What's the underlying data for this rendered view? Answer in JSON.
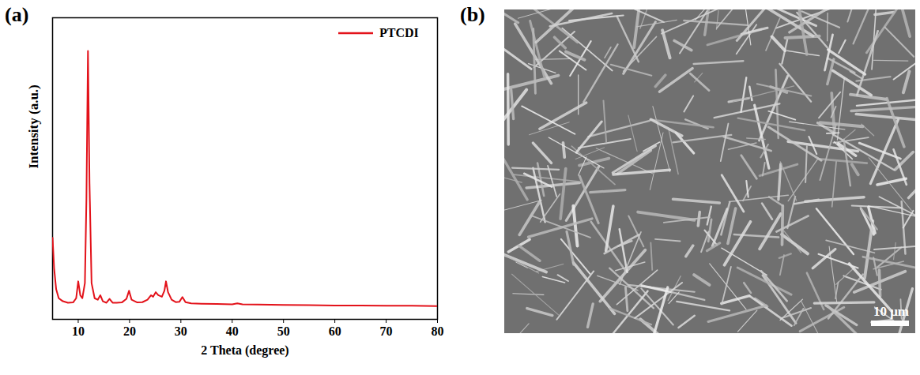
{
  "chart_data": {
    "type": "line",
    "panel_label": "(a)",
    "x_label": "2 Theta (degree)",
    "y_label": "Intensity (a.u.)",
    "x": [
      5,
      5.3,
      5.7,
      6.2,
      7,
      8,
      9,
      9.6,
      10,
      10.4,
      10.8,
      11.3,
      11.6,
      11.9,
      12.2,
      12.6,
      13.2,
      13.8,
      14.3,
      14.8,
      15.5,
      16.1,
      16.7,
      17.5,
      18.5,
      19.4,
      19.9,
      20.4,
      21.5,
      22.5,
      23.5,
      24.2,
      24.6,
      25.1,
      25.6,
      26.3,
      26.8,
      27.1,
      27.5,
      28.2,
      29,
      29.7,
      30.3,
      30.9,
      32,
      34,
      37,
      40,
      41,
      42,
      45,
      50,
      55,
      60,
      65,
      70,
      75,
      80
    ],
    "series": [
      {
        "name": "PTCDI",
        "color": "#e3121a",
        "line_style": "solid",
        "values": [
          27,
          17,
          10,
          7,
          6,
          5.5,
          5.6,
          7,
          12.6,
          8,
          7,
          12,
          40,
          89,
          45,
          12,
          7,
          6.5,
          8,
          6,
          5.5,
          6.8,
          5.5,
          5.5,
          5.6,
          6.8,
          9.5,
          6.5,
          5.6,
          5.7,
          6.5,
          8,
          7.5,
          9,
          8,
          7.5,
          9.5,
          12.6,
          9,
          6.5,
          5.7,
          5.8,
          7.4,
          5.7,
          5.3,
          5.2,
          5.1,
          5,
          5.3,
          5.0,
          4.9,
          4.8,
          4.7,
          4.6,
          4.6,
          4.5,
          4.5,
          4.4
        ]
      }
    ],
    "xlim": [
      5,
      80
    ],
    "xticks": [
      10,
      20,
      30,
      40,
      50,
      60,
      70,
      80
    ],
    "ylim": [
      0,
      100
    ],
    "tick_labels": "x",
    "grid": false,
    "legend": "top-right"
  },
  "image_panel": {
    "panel_label": "(b)",
    "scale_bar_label": "10 μm"
  }
}
